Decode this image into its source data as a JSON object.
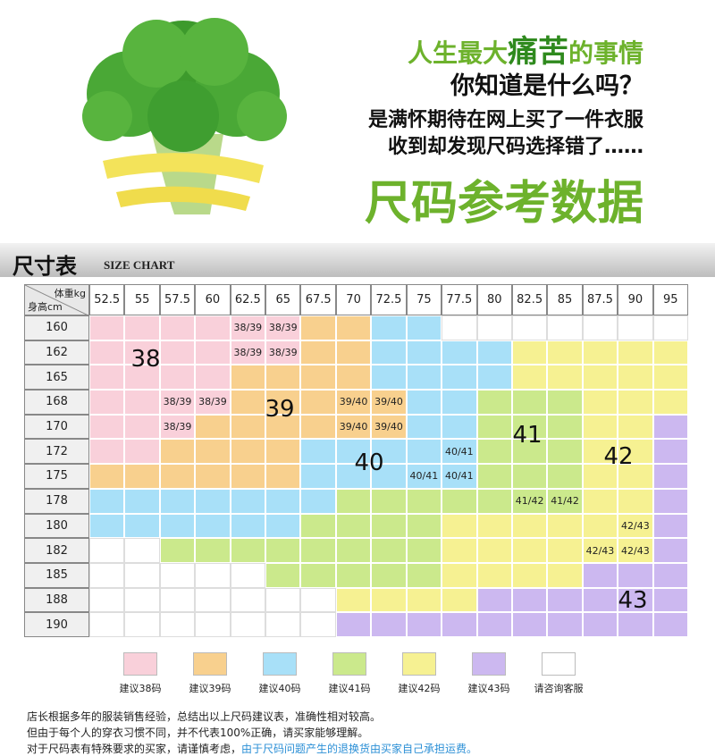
{
  "header": {
    "line1": [
      "人生最大",
      "痛苦",
      "的事情"
    ],
    "line2": "你知道是什么吗？",
    "line3": "是满怀期待在网上买了一件衣服",
    "line4": "收到却发现尺码选择错了……",
    "headline": "尺码参考数据"
  },
  "section": {
    "title": "尺寸表",
    "subtitle": "SIZE CHART"
  },
  "table": {
    "corner_top": "体重kg",
    "corner_bottom": "身高cm",
    "weights": [
      "52.5",
      "55",
      "57.5",
      "60",
      "62.5",
      "65",
      "67.5",
      "70",
      "72.5",
      "75",
      "77.5",
      "80",
      "82.5",
      "85",
      "87.5",
      "90",
      "95"
    ],
    "rows": [
      {
        "height": "160",
        "cells": [
          0,
          0,
          0,
          0,
          {
            "zone": 0,
            "label": "38/39"
          },
          {
            "zone": 0,
            "label": "38/39"
          },
          1,
          1,
          2,
          2,
          6,
          6,
          6,
          6,
          6,
          6,
          6
        ]
      },
      {
        "height": "162",
        "cells": [
          0,
          0,
          0,
          0,
          {
            "zone": 0,
            "label": "38/39"
          },
          {
            "zone": 0,
            "label": "38/39"
          },
          1,
          1,
          2,
          2,
          2,
          2,
          4,
          4,
          4,
          4,
          4
        ]
      },
      {
        "height": "165",
        "cells": [
          0,
          0,
          0,
          0,
          1,
          1,
          1,
          1,
          2,
          2,
          2,
          2,
          4,
          4,
          4,
          4,
          4
        ]
      },
      {
        "height": "168",
        "cells": [
          0,
          0,
          {
            "zone": 0,
            "label": "38/39"
          },
          {
            "zone": 0,
            "label": "38/39"
          },
          1,
          1,
          1,
          {
            "zone": 1,
            "label": "39/40"
          },
          {
            "zone": 1,
            "label": "39/40"
          },
          2,
          2,
          3,
          3,
          3,
          4,
          4,
          4
        ]
      },
      {
        "height": "170",
        "cells": [
          0,
          0,
          {
            "zone": 0,
            "label": "38/39"
          },
          1,
          1,
          1,
          1,
          {
            "zone": 1,
            "label": "39/40"
          },
          {
            "zone": 1,
            "label": "39/40"
          },
          2,
          2,
          3,
          3,
          3,
          4,
          4,
          5
        ]
      },
      {
        "height": "172",
        "cells": [
          0,
          0,
          1,
          1,
          1,
          1,
          2,
          2,
          2,
          2,
          {
            "zone": 2,
            "label": "40/41"
          },
          3,
          3,
          3,
          4,
          4,
          5
        ]
      },
      {
        "height": "175",
        "cells": [
          1,
          1,
          1,
          1,
          1,
          1,
          2,
          2,
          2,
          {
            "zone": 2,
            "label": "40/41"
          },
          {
            "zone": 2,
            "label": "40/41"
          },
          3,
          3,
          3,
          4,
          4,
          5
        ]
      },
      {
        "height": "178",
        "cells": [
          2,
          2,
          2,
          2,
          2,
          2,
          2,
          3,
          3,
          3,
          3,
          3,
          {
            "zone": 3,
            "label": "41/42"
          },
          {
            "zone": 3,
            "label": "41/42"
          },
          4,
          4,
          5
        ]
      },
      {
        "height": "180",
        "cells": [
          2,
          2,
          2,
          2,
          2,
          2,
          3,
          3,
          3,
          3,
          4,
          4,
          4,
          4,
          4,
          {
            "zone": 4,
            "label": "42/43"
          },
          5
        ]
      },
      {
        "height": "182",
        "cells": [
          6,
          6,
          3,
          3,
          3,
          3,
          3,
          3,
          3,
          3,
          4,
          4,
          4,
          4,
          {
            "zone": 4,
            "label": "42/43"
          },
          {
            "zone": 4,
            "label": "42/43"
          },
          5
        ]
      },
      {
        "height": "185",
        "cells": [
          6,
          6,
          6,
          6,
          6,
          3,
          3,
          3,
          3,
          3,
          4,
          4,
          4,
          4,
          5,
          5,
          5
        ]
      },
      {
        "height": "188",
        "cells": [
          6,
          6,
          6,
          6,
          6,
          6,
          6,
          4,
          4,
          4,
          4,
          5,
          5,
          5,
          5,
          5,
          5
        ]
      },
      {
        "height": "190",
        "cells": [
          6,
          6,
          6,
          6,
          6,
          6,
          6,
          5,
          5,
          5,
          5,
          5,
          5,
          5,
          5,
          5,
          5
        ]
      }
    ],
    "zone_labels": [
      "38",
      "39",
      "40",
      "41",
      "42",
      "43"
    ]
  },
  "legend": [
    {
      "label": "建议38码",
      "color": "#f9d0da"
    },
    {
      "label": "建议39码",
      "color": "#f8d08e"
    },
    {
      "label": "建议40码",
      "color": "#a8e0f8"
    },
    {
      "label": "建议41码",
      "color": "#cbe98c"
    },
    {
      "label": "建议42码",
      "color": "#f6f192"
    },
    {
      "label": "建议43码",
      "color": "#ccb8f0"
    },
    {
      "label": "请咨询客服",
      "color": "#ffffff"
    }
  ],
  "notes": {
    "line1": "店长根据多年的服装销售经验，总结出以上尺码建议表，准确性相对较高。",
    "line2": "但由于每个人的穿衣习惯不同，并不代表100%正确，请买家能够理解。",
    "line3": [
      "对于尺码表有特殊要求的买家，请谨慎考虑，",
      "由于尺码问题产生的退换货由买家自己承担运费。"
    ]
  }
}
